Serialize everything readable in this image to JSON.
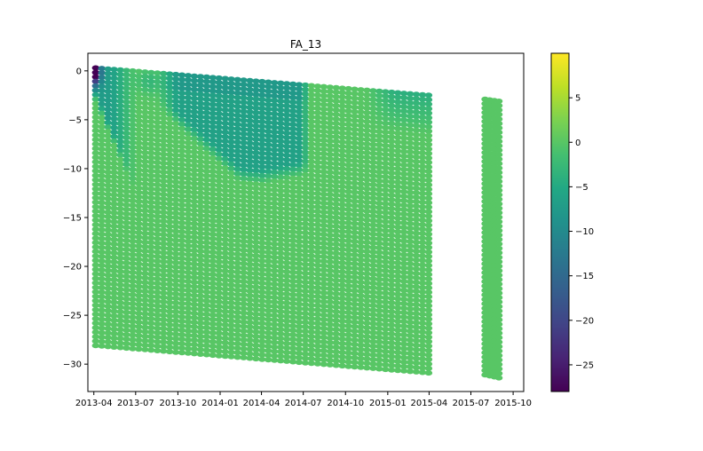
{
  "chart_data": {
    "type": "scatter",
    "title": "FA_13",
    "xlabel": "",
    "ylabel": "",
    "x_ticks": [
      "2013-04",
      "2013-07",
      "2013-10",
      "2014-01",
      "2014-04",
      "2014-07",
      "2014-10",
      "2015-01",
      "2015-04",
      "2015-07",
      "2015-10"
    ],
    "x_range": [
      "2013-03-19",
      "2015-10-24"
    ],
    "y_ticks": [
      0,
      -5,
      -10,
      -15,
      -20,
      -25,
      -30
    ],
    "ylim": [
      -32.8,
      1.8
    ],
    "colorbar": {
      "colormap": "viridis",
      "range": [
        -28,
        10
      ],
      "ticks": [
        5,
        0,
        -5,
        -10,
        -15,
        -20,
        -25
      ]
    },
    "segments": [
      {
        "x_start": "2013-04-05",
        "x_end": "2015-03-31",
        "top_start": 0.3,
        "top_end": -2.5,
        "bottom_start": -28.1,
        "bottom_end": -30.9,
        "background_value": 0,
        "anomaly": "values near 0 throughout except a near-surface zone: about -25 at the start, about -7 in the upper 5-11 m during 2013-04 to 2013-07, about -6 to -8 in the upper 2-10 m from 2013-10 to 2014-07, and about -3 to -4 in the upper 1-4 m during 2015-01 to 2015-03"
      },
      {
        "x_start": "2015-08-01",
        "x_end": "2015-08-31",
        "top_start": -2.9,
        "top_end": -3.1,
        "bottom_start": -31.1,
        "bottom_end": -31.4,
        "background_value": 0,
        "anomaly": "values near 0 throughout"
      }
    ]
  }
}
